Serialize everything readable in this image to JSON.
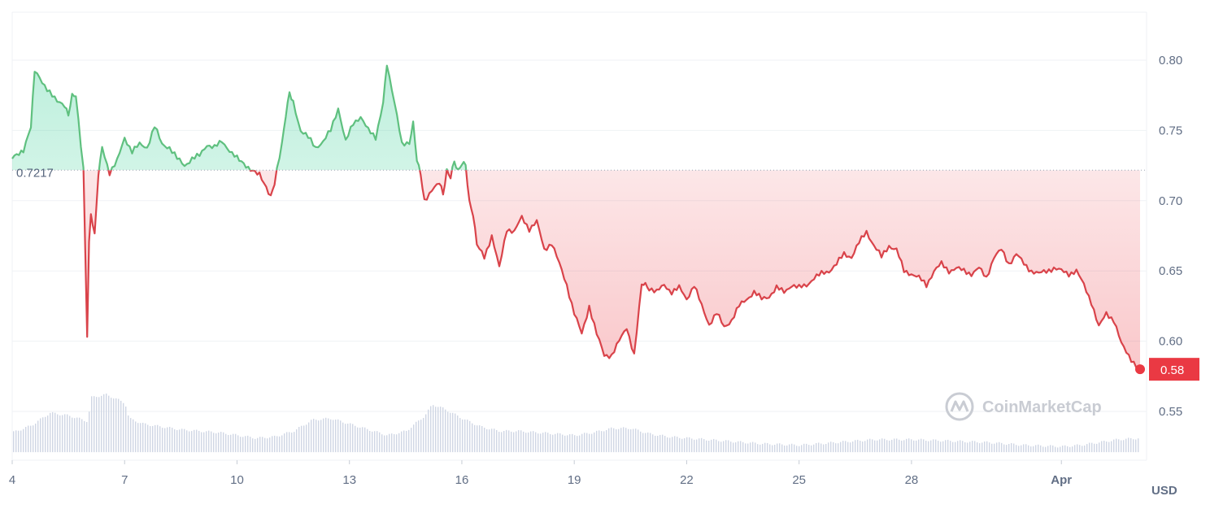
{
  "unit_label": "USD",
  "watermark": "CoinMarketCap",
  "reference_label": "0.7217",
  "last_label": "0.58",
  "colors": {
    "up": "#16c784",
    "up_line": "#5fc07f",
    "down": "#ea3943",
    "down_line": "#d9434a",
    "volume": "#cfd6e4",
    "grid": "#eff2f5",
    "text": "#616e85"
  },
  "chart_data": {
    "type": "line",
    "title": "",
    "xlabel": "",
    "ylabel": "",
    "ylim": [
      0.52,
      0.84
    ],
    "y_ticks": [
      "0.80",
      "0.75",
      "0.70",
      "0.65",
      "0.60",
      "0.55"
    ],
    "x_ticks": [
      "4",
      "7",
      "10",
      "13",
      "16",
      "19",
      "22",
      "25",
      "28",
      "Apr"
    ],
    "x_tick_days": [
      4,
      7,
      10,
      13,
      16,
      19,
      22,
      25,
      28,
      32
    ],
    "x_range_days": [
      4,
      34.1
    ],
    "reference_price": 0.7217,
    "last_price": 0.58,
    "series": [
      {
        "x": [
          4.0,
          4.3,
          4.5,
          4.6,
          4.8,
          5.0,
          5.2,
          5.4,
          5.5,
          5.6,
          5.7,
          5.9,
          6.0,
          6.05,
          6.1,
          6.2,
          6.3,
          6.4,
          6.6,
          6.8,
          7.0,
          7.2,
          7.4,
          7.6,
          7.8,
          8.0,
          8.2,
          8.4,
          8.6,
          8.8,
          9.0,
          9.2,
          9.4,
          9.6,
          9.8,
          10.0,
          10.3,
          10.6,
          10.9,
          11.0,
          11.2,
          11.3,
          11.4,
          11.5,
          11.7,
          11.9,
          12.1,
          12.3,
          12.5,
          12.7,
          12.9,
          13.1,
          13.3,
          13.5,
          13.7,
          13.9,
          14.0,
          14.2,
          14.4,
          14.6,
          14.7,
          14.8,
          14.9,
          15.0,
          15.2,
          15.4,
          15.5,
          15.6,
          15.7,
          15.8,
          15.9,
          16.0,
          16.1,
          16.2,
          16.3,
          16.4,
          16.6,
          16.8,
          17.0,
          17.2,
          17.4,
          17.6,
          17.8,
          18.0,
          18.2,
          18.4,
          18.6,
          18.8,
          19.0,
          19.2,
          19.4,
          19.6,
          19.8,
          20.0,
          20.2,
          20.4,
          20.6,
          20.8,
          20.9,
          21.0,
          21.2,
          21.4,
          21.6,
          21.8,
          22.0,
          22.2,
          22.4,
          22.6,
          22.8,
          23.0,
          23.2,
          23.4,
          23.6,
          23.8,
          24.0,
          24.2,
          24.4,
          24.6,
          24.8,
          25.0,
          25.2,
          25.4,
          25.6,
          25.8,
          26.0,
          26.2,
          26.4,
          26.6,
          26.8,
          27.0,
          27.2,
          27.4,
          27.6,
          27.8,
          28.0,
          28.2,
          28.4,
          28.6,
          28.8,
          29.0,
          29.2,
          29.4,
          29.6,
          29.8,
          30.0,
          30.2,
          30.4,
          30.6,
          30.8,
          31.0,
          31.2,
          31.4,
          31.6,
          31.8,
          32.0,
          32.2,
          32.4,
          32.6,
          32.8,
          33.0,
          33.2,
          33.4,
          33.6,
          33.8,
          34.0,
          34.1
        ],
        "values": [
          0.731,
          0.735,
          0.752,
          0.792,
          0.784,
          0.778,
          0.77,
          0.768,
          0.76,
          0.775,
          0.776,
          0.722,
          0.605,
          0.67,
          0.69,
          0.675,
          0.72,
          0.738,
          0.72,
          0.728,
          0.745,
          0.735,
          0.74,
          0.738,
          0.753,
          0.74,
          0.738,
          0.73,
          0.725,
          0.73,
          0.732,
          0.74,
          0.738,
          0.742,
          0.736,
          0.73,
          0.722,
          0.718,
          0.702,
          0.712,
          0.74,
          0.76,
          0.778,
          0.77,
          0.75,
          0.745,
          0.738,
          0.742,
          0.75,
          0.766,
          0.742,
          0.755,
          0.76,
          0.75,
          0.745,
          0.77,
          0.798,
          0.77,
          0.74,
          0.742,
          0.755,
          0.728,
          0.72,
          0.7,
          0.708,
          0.712,
          0.705,
          0.722,
          0.716,
          0.728,
          0.722,
          0.726,
          0.725,
          0.7,
          0.69,
          0.668,
          0.66,
          0.675,
          0.652,
          0.68,
          0.678,
          0.688,
          0.68,
          0.685,
          0.665,
          0.67,
          0.655,
          0.64,
          0.62,
          0.605,
          0.625,
          0.605,
          0.59,
          0.59,
          0.6,
          0.61,
          0.59,
          0.64,
          0.64,
          0.638,
          0.635,
          0.64,
          0.635,
          0.638,
          0.63,
          0.64,
          0.625,
          0.612,
          0.62,
          0.61,
          0.615,
          0.625,
          0.63,
          0.635,
          0.63,
          0.632,
          0.638,
          0.635,
          0.64,
          0.638,
          0.64,
          0.645,
          0.648,
          0.65,
          0.655,
          0.662,
          0.66,
          0.67,
          0.678,
          0.668,
          0.66,
          0.668,
          0.665,
          0.65,
          0.648,
          0.645,
          0.64,
          0.65,
          0.655,
          0.65,
          0.652,
          0.65,
          0.648,
          0.652,
          0.645,
          0.66,
          0.665,
          0.655,
          0.662,
          0.655,
          0.65,
          0.648,
          0.65,
          0.652,
          0.65,
          0.648,
          0.65,
          0.64,
          0.628,
          0.61,
          0.62,
          0.615,
          0.598,
          0.59,
          0.582,
          0.58
        ]
      }
    ],
    "volume_series": {
      "x": [
        4.0,
        4.5,
        5.0,
        5.5,
        6.0,
        6.1,
        6.5,
        7.0,
        7.1,
        7.5,
        8.0,
        8.5,
        9.0,
        9.5,
        10.0,
        10.5,
        11.0,
        11.5,
        12.0,
        12.5,
        13.0,
        13.5,
        14.0,
        14.5,
        15.0,
        15.2,
        15.5,
        16.0,
        16.5,
        17.0,
        17.5,
        18.0,
        18.5,
        19.0,
        19.5,
        20.0,
        20.5,
        21.0,
        21.5,
        22.0,
        23.0,
        24.0,
        25.0,
        26.0,
        27.0,
        28.0,
        29.0,
        30.0,
        31.0,
        32.0,
        32.5,
        33.0,
        33.5,
        34.1
      ],
      "values": [
        0.535,
        0.54,
        0.549,
        0.547,
        0.543,
        0.56,
        0.562,
        0.556,
        0.545,
        0.541,
        0.539,
        0.537,
        0.536,
        0.535,
        0.533,
        0.531,
        0.532,
        0.536,
        0.544,
        0.545,
        0.541,
        0.537,
        0.533,
        0.536,
        0.547,
        0.555,
        0.552,
        0.545,
        0.539,
        0.536,
        0.536,
        0.535,
        0.534,
        0.533,
        0.535,
        0.538,
        0.538,
        0.534,
        0.532,
        0.531,
        0.529,
        0.527,
        0.526,
        0.528,
        0.53,
        0.53,
        0.529,
        0.528,
        0.526,
        0.525,
        0.526,
        0.528,
        0.53,
        0.531
      ]
    }
  }
}
